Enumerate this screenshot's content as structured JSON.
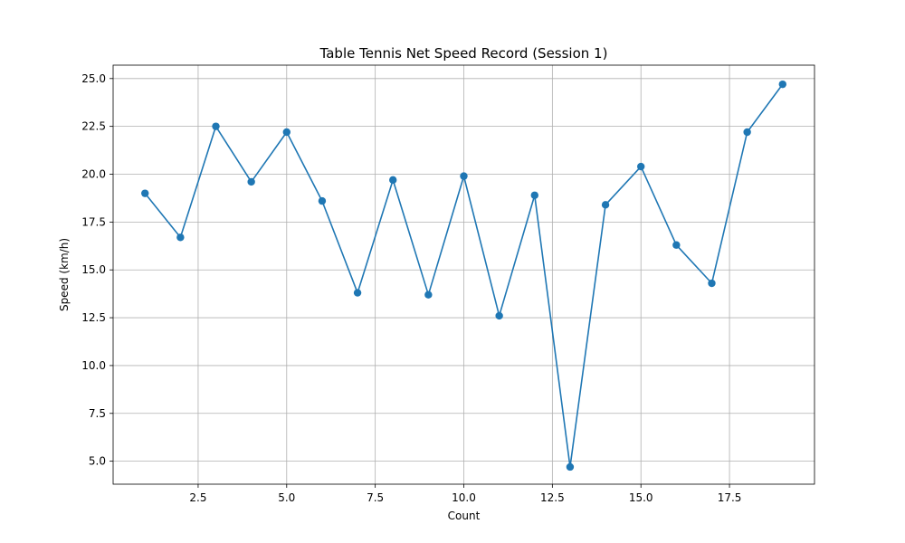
{
  "chart_data": {
    "type": "line",
    "title": "Table Tennis Net Speed Record (Session 1)",
    "xlabel": "Count",
    "ylabel": "Speed (km/h)",
    "xlim": [
      0.1,
      19.9
    ],
    "ylim": [
      3.8,
      25.7
    ],
    "xticks": [
      2.5,
      5.0,
      7.5,
      10.0,
      12.5,
      15.0,
      17.5
    ],
    "xtick_labels": [
      "2.5",
      "5.0",
      "7.5",
      "10.0",
      "12.5",
      "15.0",
      "17.5"
    ],
    "yticks": [
      5.0,
      7.5,
      10.0,
      12.5,
      15.0,
      17.5,
      20.0,
      22.5,
      25.0
    ],
    "ytick_labels": [
      "5.0",
      "7.5",
      "10.0",
      "12.5",
      "15.0",
      "17.5",
      "20.0",
      "22.5",
      "25.0"
    ],
    "grid": true,
    "marker": "circle",
    "color": "#1f77b4",
    "series": [
      {
        "x": [
          1,
          2,
          3,
          4,
          5,
          6,
          7,
          8,
          9,
          10,
          11,
          12,
          13,
          14,
          15,
          16,
          17,
          18,
          19
        ],
        "values": [
          19.0,
          16.7,
          22.5,
          19.6,
          22.2,
          18.6,
          13.8,
          19.7,
          13.7,
          19.9,
          12.6,
          18.9,
          4.7,
          18.4,
          20.4,
          16.3,
          14.3,
          22.2,
          24.7
        ]
      }
    ]
  }
}
